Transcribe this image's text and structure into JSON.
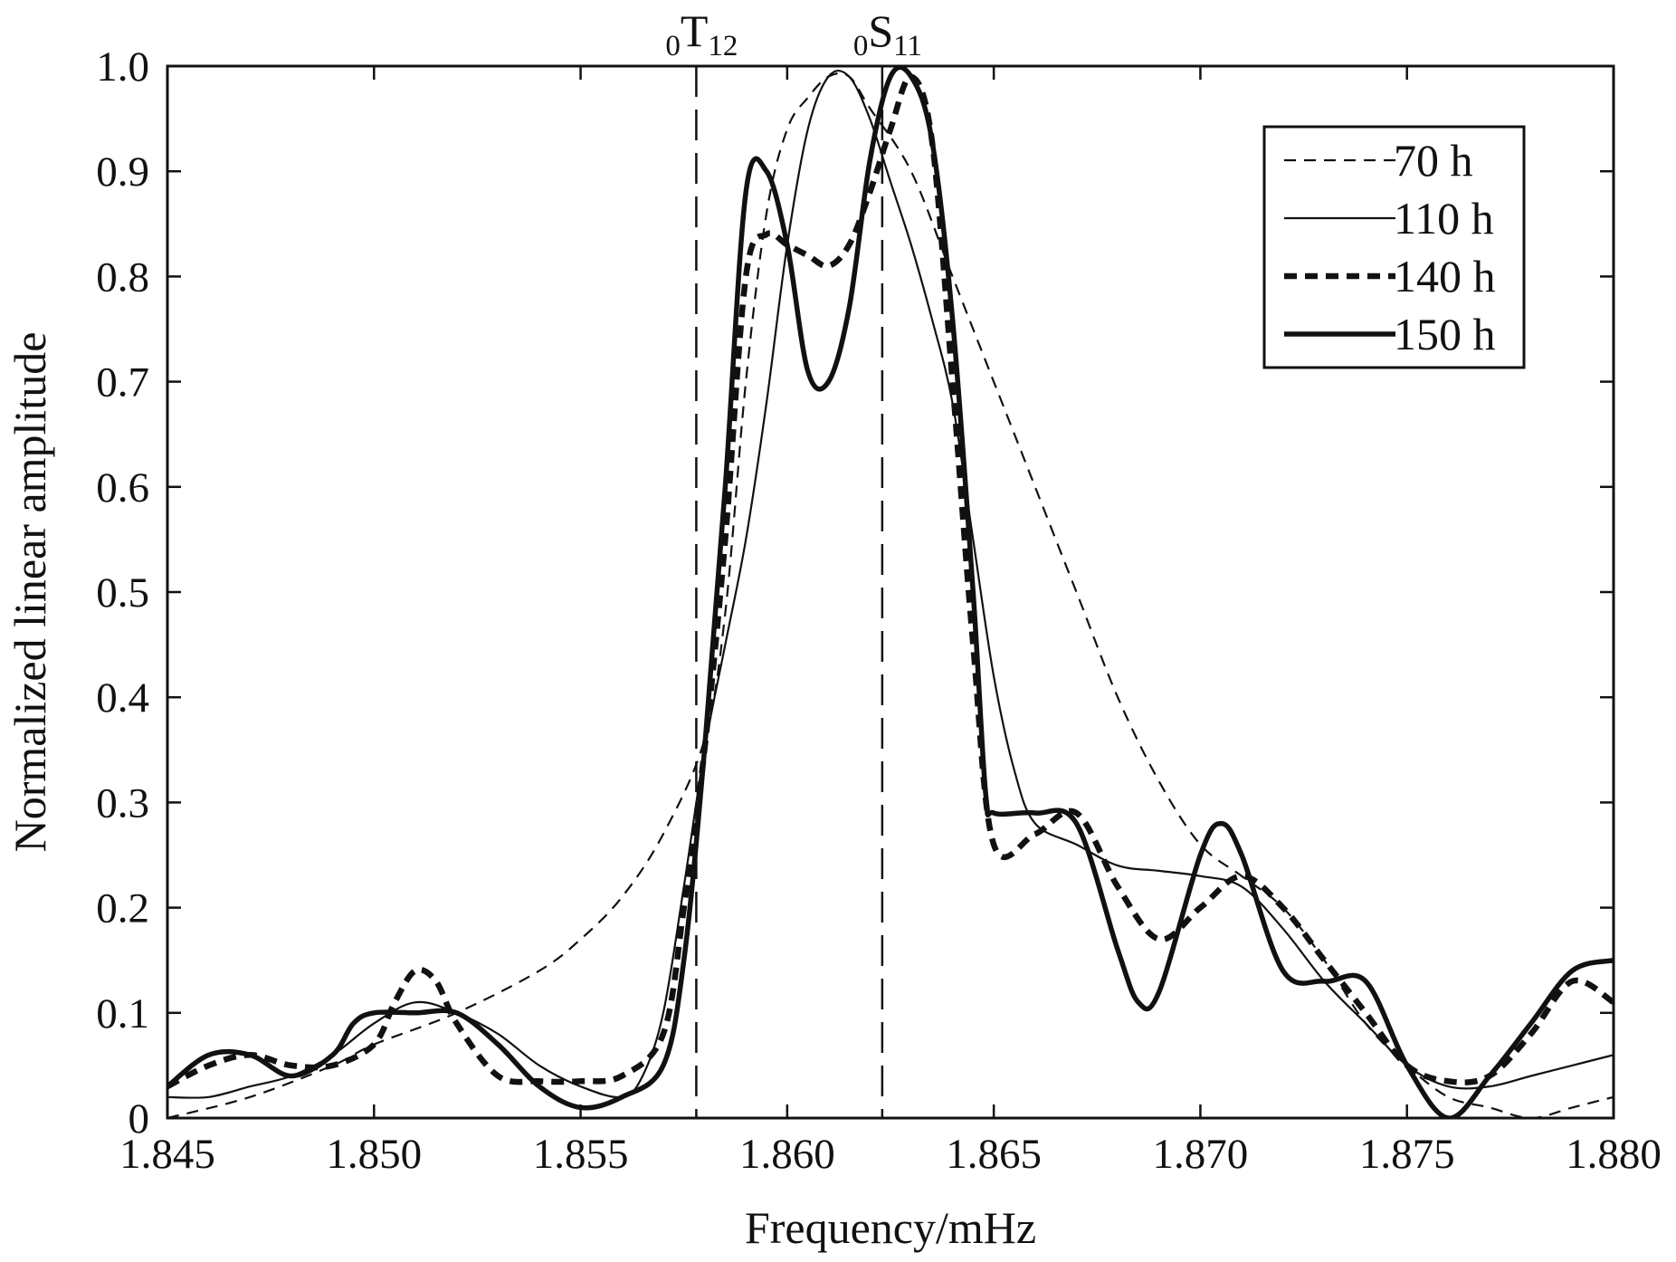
{
  "chart_data": {
    "type": "line",
    "title": "",
    "xlabel": "Frequency/mHz",
    "ylabel": "Normalized linear amplitude",
    "xlim": [
      1.845,
      1.88
    ],
    "ylim": [
      0,
      1.0
    ],
    "x_ticks": [
      1.845,
      1.85,
      1.855,
      1.86,
      1.865,
      1.87,
      1.875,
      1.88
    ],
    "x_tick_labels": [
      "1.845",
      "1.850",
      "1.855",
      "1.860",
      "1.865",
      "1.870",
      "1.875",
      "1.880"
    ],
    "y_ticks": [
      0,
      0.1,
      0.2,
      0.3,
      0.4,
      0.5,
      0.6,
      0.7,
      0.8,
      0.9,
      1.0
    ],
    "y_tick_labels": [
      "0",
      "0.1",
      "0.2",
      "0.3",
      "0.4",
      "0.5",
      "0.6",
      "0.7",
      "0.8",
      "0.9",
      "1.0"
    ],
    "grid": false,
    "legend_position": "top-right",
    "mode_lines": [
      {
        "x": 1.8578,
        "prefix": "0",
        "letter": "T",
        "suffix": "12"
      },
      {
        "x": 1.8623,
        "prefix": "0",
        "letter": "S",
        "suffix": "11"
      }
    ],
    "series": [
      {
        "name": "70 h",
        "style": "dashed-thin",
        "x": [
          1.845,
          1.847,
          1.849,
          1.85,
          1.852,
          1.854,
          1.855,
          1.856,
          1.857,
          1.858,
          1.8585,
          1.859,
          1.8595,
          1.86,
          1.8605,
          1.861,
          1.8615,
          1.862,
          1.863,
          1.864,
          1.865,
          1.866,
          1.867,
          1.868,
          1.869,
          1.87,
          1.871,
          1.872,
          1.873,
          1.874,
          1.875,
          1.876,
          1.877,
          1.878,
          1.879,
          1.88
        ],
        "y": [
          0.0,
          0.02,
          0.05,
          0.07,
          0.1,
          0.14,
          0.17,
          0.21,
          0.27,
          0.36,
          0.48,
          0.7,
          0.86,
          0.94,
          0.97,
          0.99,
          0.99,
          0.96,
          0.9,
          0.8,
          0.7,
          0.6,
          0.5,
          0.4,
          0.32,
          0.26,
          0.23,
          0.2,
          0.15,
          0.09,
          0.05,
          0.02,
          0.01,
          0.0,
          0.01,
          0.02
        ]
      },
      {
        "name": "110 h",
        "style": "solid-thin",
        "x": [
          1.845,
          1.846,
          1.847,
          1.848,
          1.849,
          1.85,
          1.851,
          1.852,
          1.853,
          1.854,
          1.855,
          1.856,
          1.8565,
          1.857,
          1.8575,
          1.858,
          1.8585,
          1.859,
          1.8595,
          1.86,
          1.8605,
          1.861,
          1.8615,
          1.862,
          1.8625,
          1.863,
          1.8635,
          1.864,
          1.8645,
          1.865,
          1.8655,
          1.866,
          1.867,
          1.868,
          1.869,
          1.87,
          1.871,
          1.872,
          1.873,
          1.874,
          1.875,
          1.876,
          1.877,
          1.878,
          1.879,
          1.88
        ],
        "y": [
          0.02,
          0.02,
          0.03,
          0.04,
          0.06,
          0.09,
          0.11,
          0.1,
          0.08,
          0.05,
          0.03,
          0.02,
          0.04,
          0.1,
          0.22,
          0.35,
          0.45,
          0.55,
          0.68,
          0.83,
          0.94,
          0.99,
          0.99,
          0.95,
          0.89,
          0.83,
          0.76,
          0.68,
          0.55,
          0.42,
          0.33,
          0.28,
          0.26,
          0.24,
          0.235,
          0.23,
          0.22,
          0.18,
          0.13,
          0.09,
          0.05,
          0.03,
          0.03,
          0.04,
          0.05,
          0.06
        ]
      },
      {
        "name": "140 h",
        "style": "dashed-thick",
        "x": [
          1.845,
          1.846,
          1.847,
          1.848,
          1.849,
          1.85,
          1.8505,
          1.851,
          1.8515,
          1.852,
          1.853,
          1.854,
          1.855,
          1.856,
          1.857,
          1.8575,
          1.858,
          1.8585,
          1.859,
          1.8595,
          1.86,
          1.8605,
          1.861,
          1.8615,
          1.862,
          1.8625,
          1.863,
          1.8635,
          1.864,
          1.8645,
          1.865,
          1.866,
          1.867,
          1.868,
          1.869,
          1.87,
          1.871,
          1.872,
          1.873,
          1.874,
          1.875,
          1.876,
          1.877,
          1.878,
          1.879,
          1.88
        ],
        "y": [
          0.03,
          0.05,
          0.06,
          0.05,
          0.05,
          0.07,
          0.11,
          0.14,
          0.13,
          0.09,
          0.04,
          0.035,
          0.035,
          0.04,
          0.08,
          0.2,
          0.35,
          0.55,
          0.8,
          0.84,
          0.83,
          0.82,
          0.81,
          0.83,
          0.88,
          0.94,
          0.99,
          0.93,
          0.7,
          0.45,
          0.26,
          0.27,
          0.29,
          0.22,
          0.17,
          0.2,
          0.23,
          0.2,
          0.15,
          0.1,
          0.05,
          0.035,
          0.04,
          0.08,
          0.13,
          0.11
        ]
      },
      {
        "name": "150 h",
        "style": "solid-thick",
        "x": [
          1.845,
          1.846,
          1.847,
          1.848,
          1.849,
          1.8495,
          1.85,
          1.851,
          1.852,
          1.853,
          1.854,
          1.855,
          1.856,
          1.857,
          1.8575,
          1.858,
          1.8585,
          1.859,
          1.8595,
          1.86,
          1.8605,
          1.861,
          1.8615,
          1.862,
          1.8625,
          1.863,
          1.8635,
          1.864,
          1.8645,
          1.8648,
          1.865,
          1.866,
          1.867,
          1.868,
          1.8685,
          1.869,
          1.87,
          1.8705,
          1.871,
          1.872,
          1.873,
          1.874,
          1.875,
          1.876,
          1.877,
          1.878,
          1.879,
          1.88
        ],
        "y": [
          0.03,
          0.06,
          0.06,
          0.04,
          0.06,
          0.09,
          0.1,
          0.1,
          0.1,
          0.07,
          0.03,
          0.01,
          0.02,
          0.05,
          0.15,
          0.35,
          0.6,
          0.88,
          0.9,
          0.83,
          0.71,
          0.7,
          0.77,
          0.91,
          0.99,
          0.99,
          0.93,
          0.76,
          0.5,
          0.31,
          0.29,
          0.29,
          0.28,
          0.16,
          0.11,
          0.12,
          0.25,
          0.28,
          0.25,
          0.14,
          0.13,
          0.13,
          0.05,
          0.0,
          0.04,
          0.09,
          0.14,
          0.15
        ]
      }
    ]
  }
}
